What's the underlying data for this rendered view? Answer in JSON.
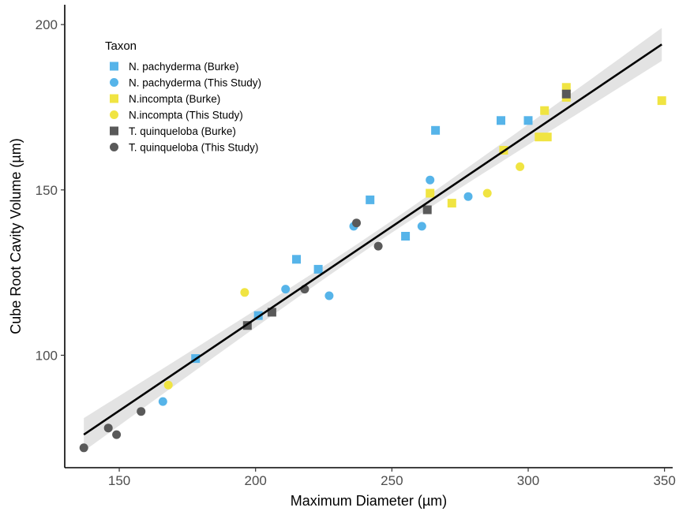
{
  "chart_data": {
    "type": "scatter",
    "title": "",
    "xlabel": "Maximum Diameter (µm)",
    "ylabel": "Cube Root Cavity Volume (µm)",
    "xlim": [
      130,
      353
    ],
    "ylim": [
      66,
      206
    ],
    "x_ticks": [
      150,
      200,
      250,
      300,
      350
    ],
    "y_ticks": [
      100,
      150,
      200
    ],
    "grid": false,
    "legend": {
      "title": "Taxon",
      "placement": "top-left"
    },
    "series": [
      {
        "name": "N. pachyderma (Burke)",
        "marker": "square",
        "color": "#56B4E9",
        "points": [
          [
            178,
            99
          ],
          [
            201,
            112
          ],
          [
            215,
            129
          ],
          [
            223,
            126
          ],
          [
            242,
            147
          ],
          [
            255,
            136
          ],
          [
            266,
            168
          ],
          [
            290,
            171
          ],
          [
            300,
            171
          ]
        ]
      },
      {
        "name": "N. pachyderma (This Study)",
        "marker": "circle",
        "color": "#56B4E9",
        "points": [
          [
            166,
            86
          ],
          [
            211,
            120
          ],
          [
            227,
            118
          ],
          [
            236,
            139
          ],
          [
            261,
            139
          ],
          [
            264,
            153
          ],
          [
            278,
            148
          ]
        ]
      },
      {
        "name": "N.incompta (Burke)",
        "marker": "square",
        "color": "#F0E442",
        "points": [
          [
            264,
            149
          ],
          [
            272,
            146
          ],
          [
            291,
            162
          ],
          [
            304,
            166
          ],
          [
            306,
            174
          ],
          [
            307,
            166
          ],
          [
            314,
            181
          ],
          [
            314,
            178
          ],
          [
            349,
            177
          ]
        ]
      },
      {
        "name": "N.incompta (This Study)",
        "marker": "circle",
        "color": "#F0E442",
        "points": [
          [
            168,
            91
          ],
          [
            196,
            119
          ],
          [
            285,
            149
          ],
          [
            297,
            157
          ]
        ]
      },
      {
        "name": "T. quinqueloba (Burke)",
        "marker": "square",
        "color": "#595959",
        "points": [
          [
            197,
            109
          ],
          [
            206,
            113
          ],
          [
            263,
            144
          ],
          [
            314,
            179
          ]
        ]
      },
      {
        "name": "T. quinqueloba (This Study)",
        "marker": "circle",
        "color": "#595959",
        "points": [
          [
            137,
            72
          ],
          [
            146,
            78
          ],
          [
            149,
            76
          ],
          [
            158,
            83
          ],
          [
            218,
            120
          ],
          [
            237,
            140
          ],
          [
            245,
            133
          ]
        ]
      }
    ],
    "fit": {
      "type": "linear",
      "x_range": [
        137,
        349
      ],
      "y_at_start": 76,
      "y_at_end": 194,
      "band_half_width_at_ends": 5,
      "band_half_width_at_center": 1.8,
      "line_color": "#000000",
      "band_color": "#d9d9d9"
    }
  }
}
